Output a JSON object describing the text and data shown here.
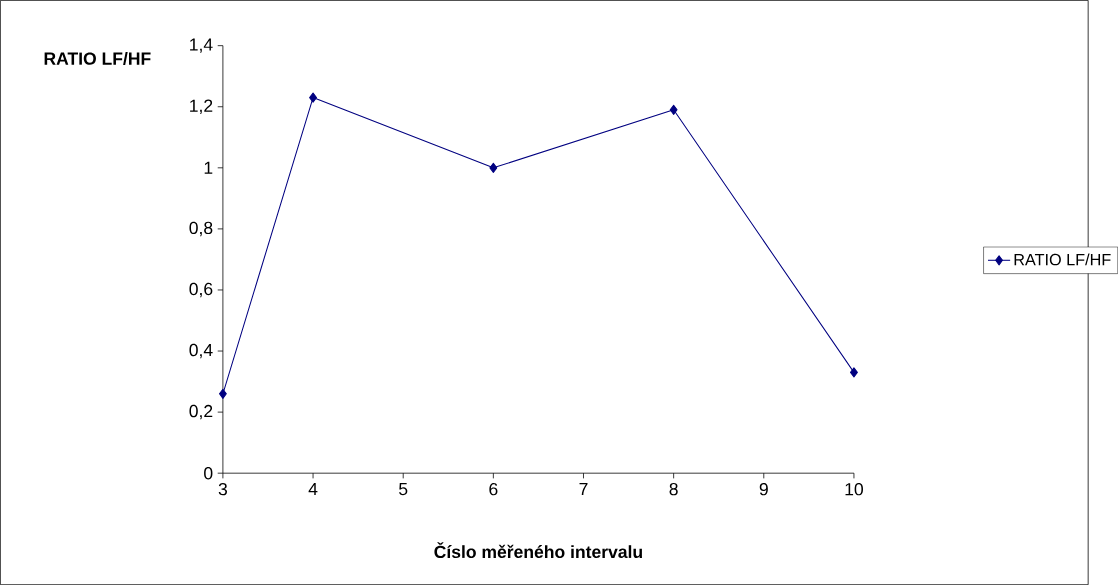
{
  "chart_data": {
    "type": "line",
    "ylabel": "RATIO LF/HF",
    "xlabel": "Číslo měřeného intervalu",
    "x": [
      3,
      4,
      6,
      8,
      10
    ],
    "series": [
      {
        "name": "RATIO LF/HF",
        "color": "#000080",
        "values": [
          0.26,
          1.23,
          1.0,
          1.19,
          0.33
        ]
      }
    ],
    "xlim": [
      3,
      10
    ],
    "xticks": [
      3,
      4,
      5,
      6,
      7,
      8,
      9,
      10
    ],
    "ylim": [
      0,
      1.4
    ],
    "yticks": [
      {
        "value": 0,
        "label": "0"
      },
      {
        "value": 0.2,
        "label": "0,2"
      },
      {
        "value": 0.4,
        "label": "0,4"
      },
      {
        "value": 0.6,
        "label": "0,6"
      },
      {
        "value": 0.8,
        "label": "0,8"
      },
      {
        "value": 1,
        "label": "1"
      },
      {
        "value": 1.2,
        "label": "1,2"
      },
      {
        "value": 1.4,
        "label": "1,4"
      }
    ],
    "grid": false,
    "legend": "right",
    "marker": "diamond",
    "line_style": "solid"
  }
}
